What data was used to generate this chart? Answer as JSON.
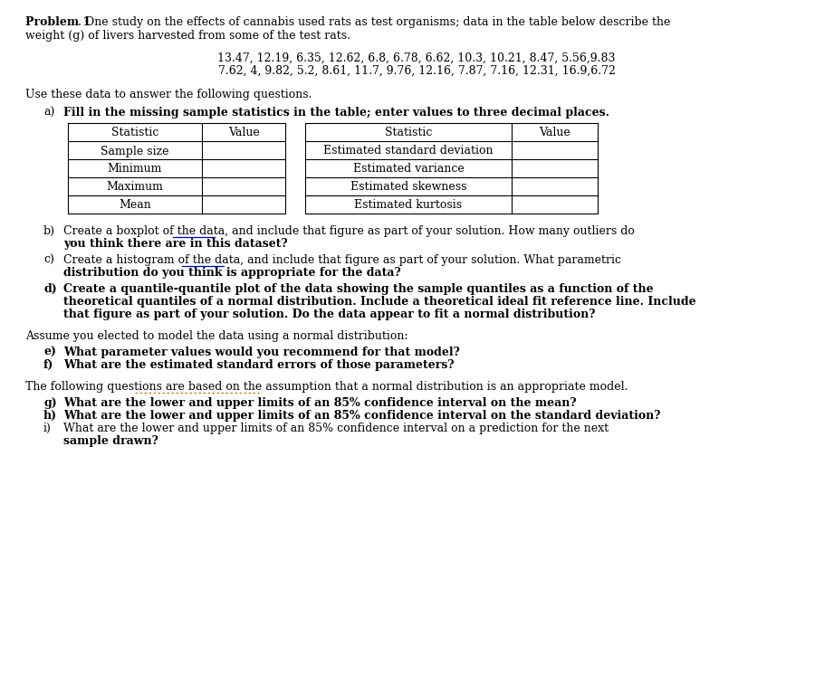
{
  "data_line1": "13.47, 12.19, 6.35, 12.62, 6.8, 6.78, 6.62, 10.3, 10.21, 8.47, 5.56,9.83",
  "data_line2": "7.62, 4, 9.82, 5.2, 8.61, 11.7, 9.76, 12.16, 7.87, 7.16, 12.31, 16.9,6.72",
  "use_text": "Use these data to answer the following questions.",
  "part_a_bold": "Fill in the missing sample statistics in the table; enter values to three decimal places.",
  "table_left_headers": [
    "Statistic",
    "Sample size",
    "Minimum",
    "Maximum",
    "Mean"
  ],
  "table_left_col2": [
    "Value",
    "",
    "",
    "",
    ""
  ],
  "table_right_headers": [
    "Statistic",
    "Estimated standard deviation",
    "Estimated variance",
    "Estimated skewness",
    "Estimated kurtosis"
  ],
  "table_right_col2": [
    "Value",
    "",
    "",
    "",
    ""
  ],
  "part_e_bold": "What parameter values would you recommend for that model?",
  "part_f_bold": "What are the estimated standard errors of those parameters?",
  "part_g_bold": "What are the lower and upper limits of an 85% confidence interval on the mean?",
  "part_h_bold": "What are the lower and upper limits of an 85% confidence interval on the standard deviation?",
  "bg_color": "#ffffff",
  "text_color": "#000000",
  "table_line_color": "#000000",
  "underline_color_blue": "#0000bb",
  "underline_color_orange": "#cc7700",
  "fs": 9.0,
  "lm": 28,
  "indent1": 48,
  "indent2": 70
}
